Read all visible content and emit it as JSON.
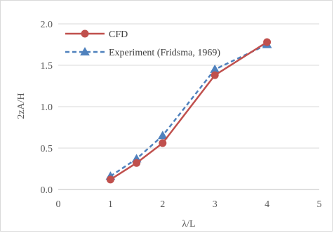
{
  "chart_data": {
    "type": "line",
    "title": "",
    "xlabel": "λ/L",
    "ylabel": "2zA/H",
    "xlim": [
      0,
      5
    ],
    "ylim": [
      0.0,
      2.0
    ],
    "x_ticks": [
      "0",
      "1",
      "2",
      "3",
      "4",
      "5"
    ],
    "y_ticks": [
      "0.0",
      "0.5",
      "1.0",
      "1.5",
      "2.0"
    ],
    "grid": "horizontal",
    "legend_position": "top-left",
    "series": [
      {
        "name": "CFD",
        "color": "#c0504d",
        "marker": "circle",
        "line_style": "solid",
        "x": [
          1,
          1.5,
          2,
          3,
          4
        ],
        "y": [
          0.12,
          0.32,
          0.56,
          1.38,
          1.78
        ]
      },
      {
        "name": "Experiment (Fridsma, 1969)",
        "color": "#4f81bd",
        "marker": "triangle",
        "line_style": "dashed",
        "x": [
          1,
          1.5,
          2,
          3,
          4
        ],
        "y": [
          0.16,
          0.37,
          0.65,
          1.45,
          1.75
        ]
      }
    ]
  }
}
